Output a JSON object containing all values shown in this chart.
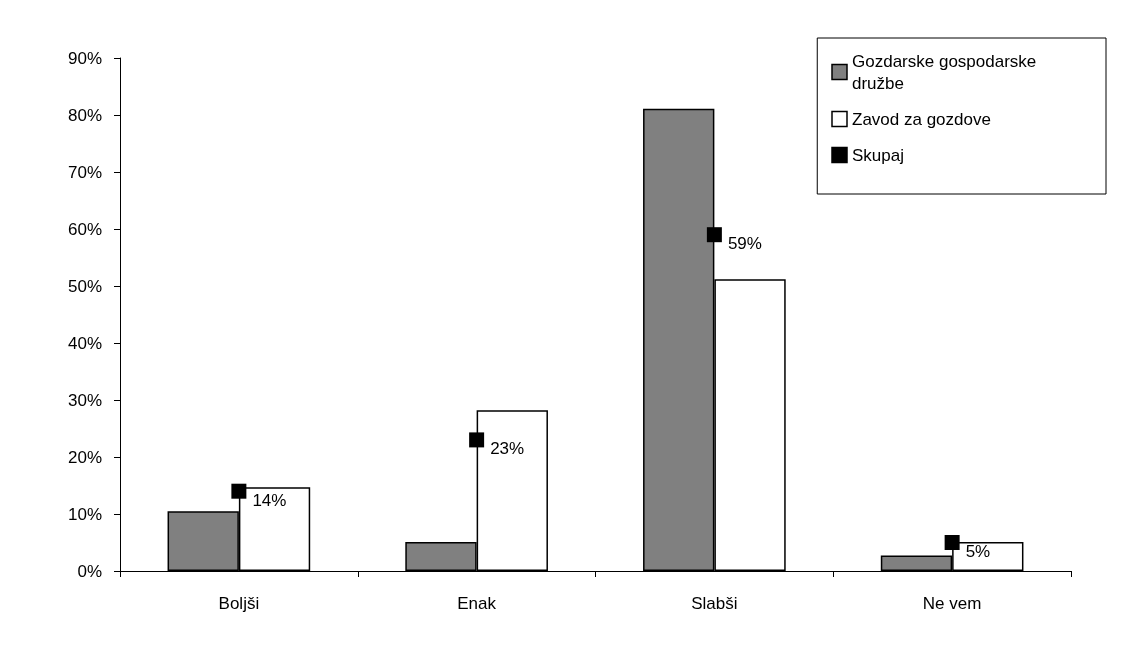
{
  "chart_data": {
    "type": "bar",
    "categories": [
      "Boljši",
      "Enak",
      "Slabši",
      "Ne vem"
    ],
    "series": [
      {
        "name": "Gozdarske gospodarske družbe",
        "color": "#808080",
        "values": [
          10.5,
          5.1,
          81.1,
          2.7
        ]
      },
      {
        "name": "Zavod za gozdove",
        "color": "#ffffff",
        "values": [
          14.7,
          28.2,
          51.2,
          5.1
        ]
      },
      {
        "name": "Skupaj",
        "type": "scatter",
        "color": "#000000",
        "x": [
          "Boljši",
          "Enak",
          "Slabši",
          "Ne vem"
        ],
        "values": [
          14,
          23,
          59,
          5
        ],
        "value_labels": [
          "14%",
          "23%",
          "59%",
          "5%"
        ],
        "marker": "square"
      }
    ],
    "ylim": [
      0,
      90
    ],
    "yticks": [
      {
        "value": 0,
        "label": "0%"
      },
      {
        "value": 10,
        "label": "10%"
      },
      {
        "value": 20,
        "label": "20%"
      },
      {
        "value": 30,
        "label": "30%"
      },
      {
        "value": 40,
        "label": "40%"
      },
      {
        "value": 50,
        "label": "50%"
      },
      {
        "value": 60,
        "label": "60%"
      },
      {
        "value": 70,
        "label": "70%"
      },
      {
        "value": 80,
        "label": "80%"
      },
      {
        "value": 90,
        "label": "90%"
      }
    ],
    "grid": false,
    "legend": "top right"
  }
}
